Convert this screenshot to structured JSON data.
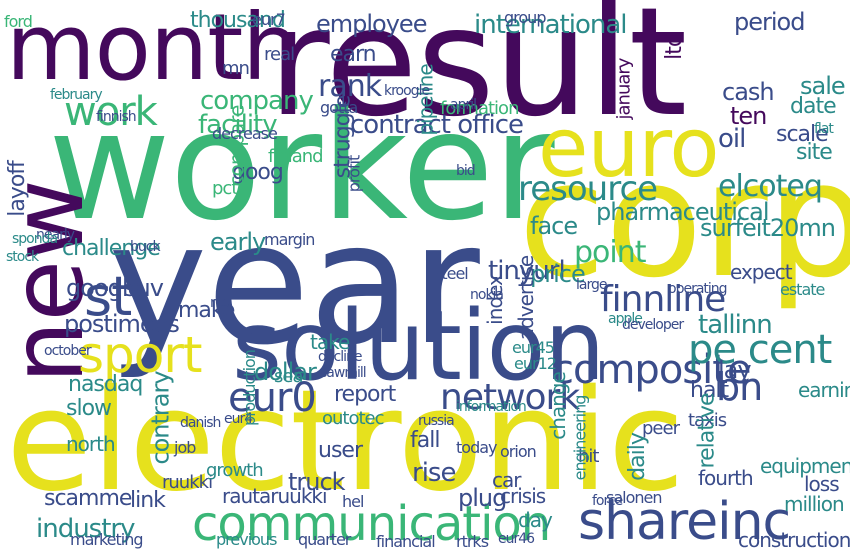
{
  "colors": {
    "purple": "#44095c",
    "navy": "#3a4c8a",
    "teal": "#2b8a89",
    "green": "#3ab677",
    "lime": "#8fd44a",
    "yellow": "#e6e11d",
    "blue": "#34638e",
    "background": "#ffffff"
  },
  "words": {
    "result": "result",
    "worker": "worker",
    "year": "year",
    "electronic": "electronic",
    "corp": "corp",
    "month": "month",
    "new": "new",
    "solution": "solution",
    "euro": "euro",
    "communication": "communication",
    "shareinc": "shareinc",
    "sport": "sport",
    "network": "network",
    "composite": "composite",
    "finnline": "finnline",
    "pe_cent": "pe cent",
    "resource": "resource",
    "work": "work",
    "contract_office": "contract office",
    "eur0": "eur0",
    "employee": "employee",
    "international": "international",
    "bn": "bn",
    "elcoteq": "elcoteq",
    "company": "company",
    "facility": "facility",
    "rank": "rank",
    "st": "st",
    "google": "google",
    "layoff": "layoff",
    "postimees": "postimees",
    "tallinn": "tallinn",
    "struggle": "struggle",
    "industry": "industry",
    "contrary": "contrary",
    "nasdaq": "nasdaq",
    "early": "early",
    "dollar": "dollar",
    "report": "report",
    "tinyurl": "tinyurl",
    "price": "price",
    "scamme": "scamme",
    "user": "user",
    "truck": "truck",
    "rise": "rise",
    "plug": "plug",
    "fall": "fall",
    "lay": "lay",
    "day": "day",
    "link": "link",
    "sale": "sale",
    "date": "date",
    "scale": "scale",
    "site": "site",
    "oil": "oil",
    "cash": "cash",
    "ten": "ten",
    "period": "period",
    "thousand": "thousand",
    "ford": "ford",
    "earn": "earn",
    "goog": "goog",
    "suv": "suv",
    "challenge": "challenge",
    "slow": "slow",
    "north": "north",
    "rautaruukki": "rautaruukki",
    "ruukki": "ruukki",
    "growth": "growth",
    "marketing": "marketing",
    "previous": "previous",
    "quarter": "quarter",
    "financial": "financial",
    "rtrks": "rtrks",
    "crisis": "crisis",
    "fourth": "fourth",
    "loss": "loss",
    "million": "million",
    "equipment": "equipment",
    "construction": "construction",
    "halt": "halt",
    "point": "point",
    "face": "face",
    "pharmaceutical": "pharmaceutical",
    "surfeit20mn": "surfeit20mn",
    "formation": "formation",
    "pipeline": "pipeline",
    "make": "make",
    "take": "take",
    "sea": "sea",
    "index": "index",
    "advertise": "advertise",
    "change": "change",
    "daily": "daily",
    "relative": "relative",
    "earning": "earning",
    "expect": "expect",
    "car": "car",
    "hit": "hit",
    "peer": "peer",
    "today": "today",
    "outotec": "outotec",
    "engineering": "engineering",
    "orion": "orion",
    "nokia": "nokia",
    "decline": "decline",
    "margin": "margin",
    "compare": "compare",
    "finland": "finland",
    "gotta": "gotta",
    "pct": "pct",
    "steel": "steel",
    "profit": "profit",
    "eur45": "eur45",
    "eur12": "eur12",
    "eur46": "eur46",
    "eur7": "eur7",
    "eur4": "eur4",
    "production": "production",
    "information": "information",
    "ltd": "ltd",
    "january": "january",
    "february": "february",
    "april": "april",
    "october": "october",
    "finnish": "finnish",
    "decrease": "decrease",
    "nearly": "nearly",
    "hel": "hel",
    "mn": "mn",
    "group": "group",
    "russia": "russia",
    "salonen": "salonen",
    "apple": "apple",
    "force": "force",
    "kroogle": "kroogle",
    "sponda": "sponda",
    "net": "net",
    "buck": "buck",
    "taxis": "taxis",
    "developer": "developer",
    "estate": "estate",
    "stock": "stock",
    "operating": "operating",
    "flat": "flat",
    "sawmill": "sawmill",
    "danish": "danish",
    "job": "job",
    "real": "real",
    "bid": "bid",
    "large": "large"
  }
}
